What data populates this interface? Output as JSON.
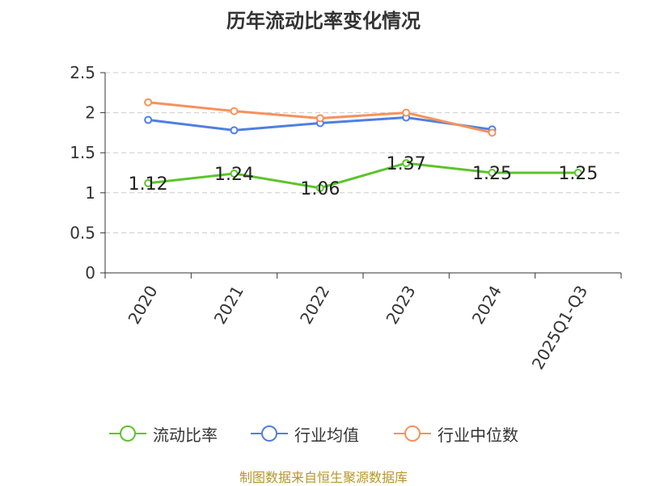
{
  "chart_data": {
    "type": "line",
    "title": "历年流动比率变化情况",
    "categories": [
      "2020",
      "2021",
      "2022",
      "2023",
      "2024",
      "2025Q1-Q3"
    ],
    "yticks": [
      "0",
      "0.5",
      "1",
      "1.5",
      "2",
      "2.5"
    ],
    "ylim": [
      0,
      2.5
    ],
    "xlabel": "",
    "ylabel": "",
    "grid": true,
    "legend_position": "bottom",
    "series": [
      {
        "name": "流动比率",
        "color": "#5cc42b",
        "values": [
          1.12,
          1.24,
          1.06,
          1.37,
          1.25,
          1.25
        ],
        "labels": [
          "1.12",
          "1.24",
          "1.06",
          "1.37",
          "1.25",
          "1.25"
        ]
      },
      {
        "name": "行业均值",
        "color": "#4f7fe0",
        "values": [
          1.91,
          1.78,
          1.87,
          1.94,
          1.79,
          null
        ]
      },
      {
        "name": "行业中位数",
        "color": "#f7915c",
        "values": [
          2.13,
          2.02,
          1.93,
          2.0,
          1.75,
          null
        ]
      }
    ]
  },
  "source_note": "制图数据来自恒生聚源数据库"
}
